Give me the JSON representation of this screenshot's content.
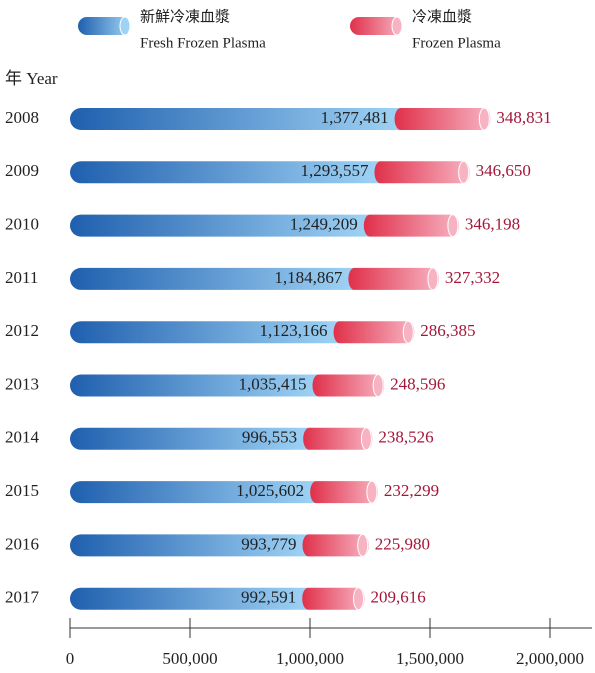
{
  "chart_data": {
    "type": "stacked-hbar",
    "y_label": "年 Year",
    "categories": [
      "2008",
      "2009",
      "2010",
      "2011",
      "2012",
      "2013",
      "2014",
      "2015",
      "2016",
      "2017"
    ],
    "series": [
      {
        "name": [
          "新鮮冷凍血漿",
          "Fresh Frozen Plasma"
        ],
        "color": "#1f5fae",
        "values": [
          1377481,
          1293557,
          1249209,
          1184867,
          1123166,
          1035415,
          996553,
          1025602,
          993779,
          992591
        ],
        "value_labels": [
          "1,377,481",
          "1,293,557",
          "1,249,209",
          "1,184,867",
          "1,123,166",
          "1,035,415",
          "996,553",
          "1,025,602",
          "993,779",
          "992,591"
        ]
      },
      {
        "name": [
          "冷凍血漿",
          "Frozen Plasma"
        ],
        "color": "#e0304a",
        "values": [
          348831,
          346650,
          346198,
          327332,
          286385,
          248596,
          238526,
          232299,
          225980,
          209616
        ],
        "value_labels": [
          "348,831",
          "346,650",
          "346,198",
          "327,332",
          "286,385",
          "248,596",
          "238,526",
          "232,299",
          "225,980",
          "209,616"
        ]
      }
    ],
    "xlim": [
      0,
      2000000
    ],
    "xticks": [
      0,
      {
        "value": 500000,
        "label": "500,000"
      },
      {
        "value": 1000000,
        "label": "1,000,000"
      },
      {
        "value": 1500000,
        "label": "1,500,000"
      },
      {
        "value": 2000000,
        "label": "2,000,000"
      }
    ]
  }
}
